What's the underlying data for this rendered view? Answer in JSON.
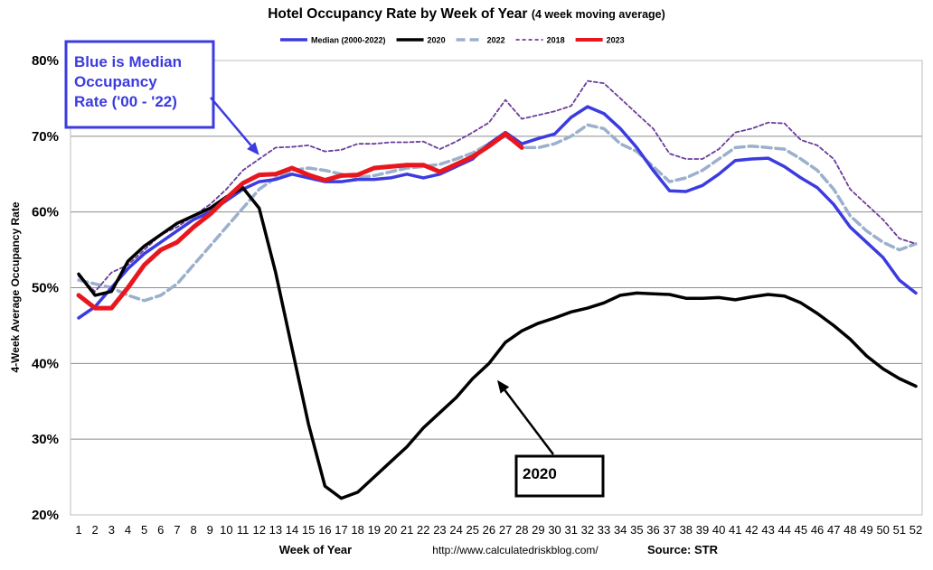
{
  "chart_data": {
    "type": "line",
    "title_main": "Hotel Occupancy Rate by  Week of Year",
    "title_sub": "(4 week moving average)",
    "xlabel": "Week of Year",
    "ylabel": "4-Week Average Occupancy Rate",
    "url": "http://www.calculatedriskblog.com/",
    "source": "Source: STR",
    "xlim": [
      1,
      52
    ],
    "ylim": [
      20,
      80
    ],
    "y_ticks": [
      "20%",
      "30%",
      "40%",
      "50%",
      "60%",
      "70%",
      "80%"
    ],
    "x_ticks": [
      "1",
      "2",
      "3",
      "4",
      "5",
      "6",
      "7",
      "8",
      "9",
      "10",
      "11",
      "12",
      "13",
      "14",
      "15",
      "16",
      "17",
      "18",
      "19",
      "20",
      "21",
      "22",
      "23",
      "24",
      "25",
      "26",
      "27",
      "28",
      "29",
      "30",
      "31",
      "32",
      "33",
      "34",
      "35",
      "36",
      "37",
      "38",
      "39",
      "40",
      "41",
      "42",
      "43",
      "44",
      "45",
      "46",
      "47",
      "48",
      "49",
      "50",
      "51",
      "52"
    ],
    "series": [
      {
        "name": "Median (2000-2022)",
        "color": "#3b3be0",
        "dash": "solid",
        "values": [
          46.0,
          47.5,
          50.0,
          52.5,
          54.5,
          56.0,
          57.5,
          59.0,
          60.0,
          61.5,
          63.0,
          64.0,
          64.3,
          65.0,
          64.5,
          64.0,
          64.0,
          64.3,
          64.3,
          64.5,
          65.0,
          64.5,
          65.0,
          66.0,
          67.0,
          69.0,
          70.5,
          69.0,
          69.7,
          70.3,
          72.5,
          73.9,
          73.0,
          71.0,
          68.5,
          65.5,
          62.8,
          62.7,
          63.5,
          65.0,
          66.8,
          67.0,
          67.1,
          66.0,
          64.5,
          63.2,
          61.0,
          58.0,
          56.0,
          54.0,
          51.0,
          49.3
        ]
      },
      {
        "name": "2020",
        "color": "#000000",
        "dash": "solid",
        "values": [
          51.8,
          49.0,
          49.5,
          53.5,
          55.5,
          57.0,
          58.5,
          59.5,
          60.5,
          62.0,
          63.2,
          60.5,
          52.0,
          42.0,
          32.0,
          23.8,
          22.2,
          23.0,
          25.0,
          27.0,
          29.0,
          31.5,
          33.5,
          35.5,
          38.0,
          40.0,
          42.8,
          44.3,
          45.3,
          46.0,
          46.8,
          47.3,
          48.0,
          49.0,
          49.3,
          49.2,
          49.1,
          48.6,
          48.6,
          48.7,
          48.4,
          48.8,
          49.1,
          48.9,
          48.0,
          46.6,
          45.0,
          43.2,
          41.0,
          39.3,
          38.0,
          37.0
        ]
      },
      {
        "name": "2022",
        "color": "#9bb0cc",
        "dash": "dash",
        "values": [
          51.0,
          50.5,
          50.0,
          49.0,
          48.3,
          49.0,
          50.5,
          53.0,
          55.5,
          58.0,
          60.5,
          63.0,
          64.5,
          65.5,
          65.8,
          65.5,
          65.0,
          64.5,
          64.8,
          65.3,
          65.8,
          66.0,
          66.3,
          67.0,
          67.8,
          69.0,
          70.0,
          68.5,
          68.5,
          69.0,
          70.0,
          71.5,
          71.0,
          69.0,
          68.0,
          66.0,
          64.0,
          64.5,
          65.5,
          67.0,
          68.5,
          68.7,
          68.5,
          68.3,
          67.0,
          65.5,
          63.0,
          59.5,
          57.5,
          56.0,
          55.0,
          55.8
        ]
      },
      {
        "name": "2018",
        "color": "#6a3d9a",
        "dash": "dot",
        "values": [
          51.5,
          49.5,
          52.0,
          53.0,
          55.0,
          57.0,
          58.0,
          59.5,
          61.0,
          63.0,
          65.5,
          67.0,
          68.5,
          68.6,
          68.8,
          68.0,
          68.2,
          69.0,
          69.0,
          69.2,
          69.2,
          69.3,
          68.3,
          69.3,
          70.5,
          71.8,
          74.8,
          72.3,
          72.8,
          73.3,
          74.0,
          77.3,
          77.0,
          75.0,
          73.0,
          71.0,
          67.7,
          67.0,
          67.0,
          68.3,
          70.5,
          71.0,
          71.8,
          71.7,
          69.5,
          68.8,
          67.0,
          63.0,
          61.0,
          59.0,
          56.5,
          55.8
        ]
      },
      {
        "name": "2023",
        "color": "#e8171d",
        "dash": "solid",
        "values": [
          49.0,
          47.3,
          47.3,
          50.0,
          53.0,
          55.0,
          56.0,
          58.0,
          59.7,
          61.8,
          63.8,
          64.9,
          65.0,
          65.8,
          64.9,
          64.2,
          64.8,
          64.9,
          65.8,
          66.0,
          66.2,
          66.2,
          65.3,
          66.3,
          67.3,
          68.7,
          70.3,
          68.5
        ]
      }
    ],
    "annotations": [
      {
        "id": "median-note",
        "lines": [
          "Blue is Median",
          "Occupancy",
          "Rate ('00 - '22)"
        ],
        "color": "#3b3be0",
        "arrow_to_week": 12,
        "arrow_to_value": 67.5
      },
      {
        "id": "year-note",
        "lines": [
          "2020"
        ],
        "color": "#000000",
        "arrow_to_week": 26.5,
        "arrow_to_value": 37.8
      }
    ]
  }
}
